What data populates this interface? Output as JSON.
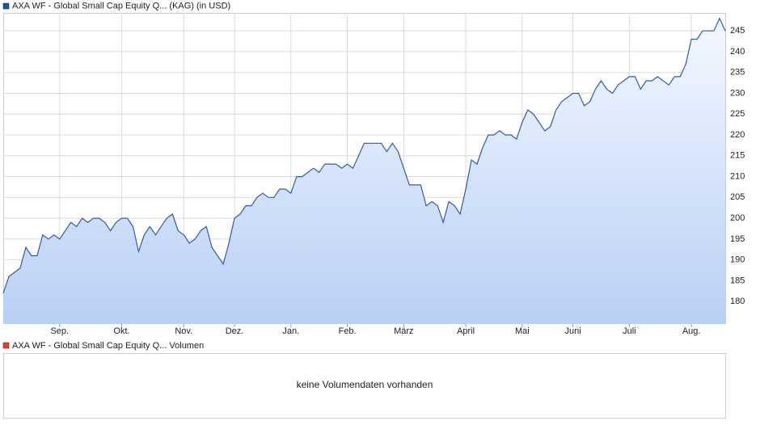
{
  "chart_data": {
    "type": "line",
    "legend_label": "AXA WF - Global Small Cap Equity Q... (KAG) (in USD)",
    "color": "#2a5cb8",
    "categories": [
      null,
      null,
      null,
      null,
      null,
      null,
      null,
      null,
      null,
      null,
      "Sep.",
      null,
      null,
      null,
      null,
      null,
      null,
      null,
      null,
      null,
      null,
      "Okt.",
      null,
      null,
      null,
      null,
      null,
      null,
      null,
      null,
      null,
      null,
      "Nov.",
      null,
      null,
      null,
      null,
      null,
      null,
      null,
      null,
      "Dez.",
      null,
      null,
      null,
      null,
      null,
      null,
      null,
      null,
      null,
      "Jan.",
      null,
      null,
      null,
      null,
      null,
      null,
      null,
      null,
      null,
      "Feb.",
      null,
      null,
      null,
      null,
      null,
      null,
      null,
      null,
      null,
      "März",
      null,
      null,
      null,
      null,
      null,
      null,
      null,
      null,
      null,
      null,
      "April",
      null,
      null,
      null,
      null,
      null,
      null,
      null,
      null,
      null,
      "Mai",
      null,
      null,
      null,
      null,
      null,
      null,
      null,
      null,
      "Juni",
      null,
      null,
      null,
      null,
      null,
      null,
      null,
      null,
      null,
      "Juli",
      null,
      null,
      null,
      null,
      null,
      null,
      null,
      null,
      null,
      null,
      "Aug.",
      null,
      null,
      null,
      null,
      null,
      null
    ],
    "values": [
      182,
      186,
      187,
      188,
      193,
      191,
      191,
      196,
      195,
      196,
      195,
      197,
      199,
      198,
      200,
      199,
      200,
      200,
      199,
      197,
      199,
      200,
      200,
      198,
      192,
      196,
      198,
      196,
      198,
      200,
      201,
      197,
      196,
      194,
      195,
      197,
      198,
      193,
      191,
      189,
      194,
      200,
      201,
      203,
      203,
      205,
      206,
      205,
      205,
      207,
      207,
      206,
      210,
      210,
      211,
      212,
      211,
      213,
      213,
      213,
      212,
      213,
      212,
      215,
      218,
      218,
      218,
      218,
      216,
      218,
      216,
      212,
      208,
      208,
      208,
      203,
      204,
      203,
      199,
      204,
      203,
      201,
      207,
      214,
      213,
      217,
      220,
      220,
      221,
      220,
      220,
      219,
      223,
      226,
      225,
      223,
      221,
      222,
      226,
      228,
      229,
      230,
      230,
      227,
      228,
      231,
      233,
      231,
      230,
      232,
      233,
      234,
      234,
      231,
      233,
      233,
      234,
      233,
      232,
      234,
      234,
      237,
      243,
      243,
      245,
      245,
      245,
      248,
      245
    ],
    "ylim": [
      174.6,
      249.3
    ],
    "yticks": [
      180,
      185,
      190,
      195,
      200,
      205,
      210,
      215,
      220,
      225,
      230,
      235,
      240,
      245
    ],
    "grid": true
  },
  "volume_panel": {
    "legend_label": "AXA WF - Global Small Cap Equity Q... Volumen",
    "message": "keine Volumendaten vorhanden"
  }
}
